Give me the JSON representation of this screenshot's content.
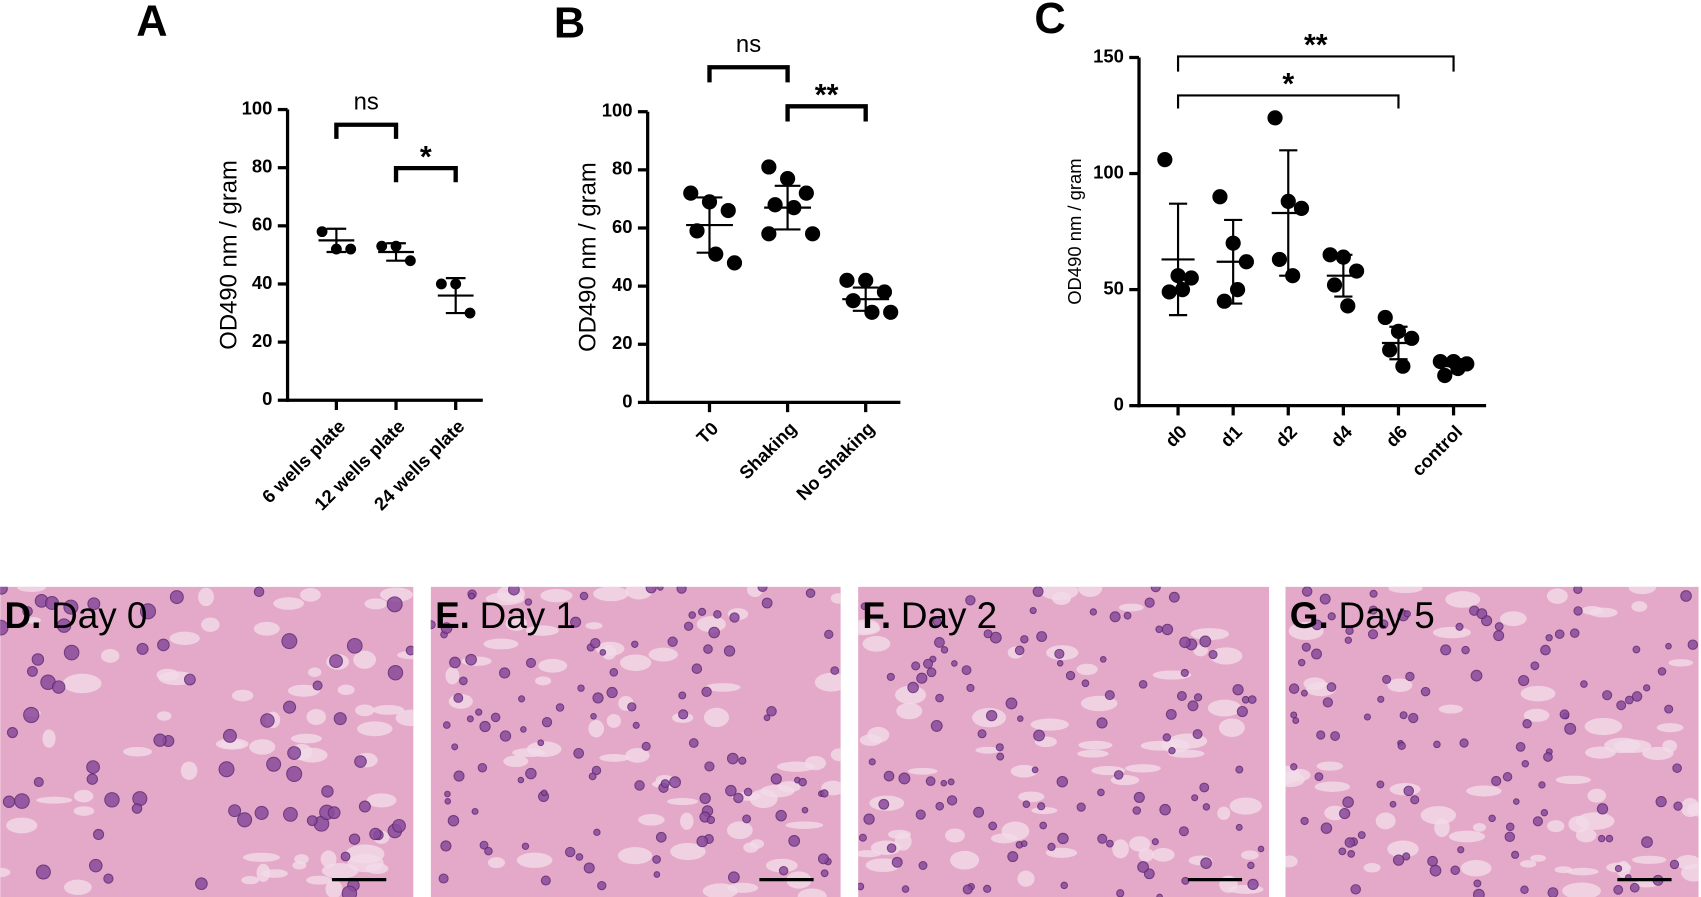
{
  "chart_data": [
    {
      "type": "dotplot",
      "panel_label": "A",
      "ylabel": "OD490 nm / gram",
      "categories": [
        "6 wells plate",
        "12 wells plate",
        "24 wells plate"
      ],
      "values": [
        [
          58,
          52,
          52
        ],
        [
          53,
          53,
          48
        ],
        [
          40,
          40,
          30
        ]
      ],
      "means": [
        55,
        51,
        36
      ],
      "sds": [
        4,
        3,
        6
      ],
      "ylim": [
        0,
        100
      ],
      "yticks": [
        0,
        20,
        40,
        60,
        80,
        100
      ],
      "annotations": [
        {
          "text": "ns",
          "from": 0,
          "to": 1
        },
        {
          "text": "*",
          "from": 1,
          "to": 2
        }
      ],
      "color": "#000000"
    },
    {
      "type": "dotplot",
      "panel_label": "B",
      "ylabel": "OD490 nm / gram",
      "categories": [
        "T0",
        "Shaking",
        "No Shaking"
      ],
      "values": [
        [
          72,
          69,
          66,
          59,
          51,
          48
        ],
        [
          81,
          77,
          72,
          68,
          67,
          58,
          58
        ],
        [
          42,
          42,
          38,
          35,
          31,
          31
        ]
      ],
      "means": [
        61,
        67,
        35.5
      ],
      "sds": [
        9.5,
        7.5,
        4
      ],
      "ylim": [
        0,
        100
      ],
      "yticks": [
        0,
        20,
        40,
        60,
        80,
        100
      ],
      "annotations": [
        {
          "text": "ns",
          "from": 0,
          "to": 1
        },
        {
          "text": "**",
          "from": 1,
          "to": 2
        }
      ],
      "color": "#000000"
    },
    {
      "type": "dotplot",
      "panel_label": "C",
      "ylabel": "OD490 nm / gram",
      "categories": [
        "d0",
        "d1",
        "d2",
        "d4",
        "d6",
        "control"
      ],
      "values": [
        [
          106,
          56,
          55,
          49,
          50
        ],
        [
          90,
          70,
          62,
          45,
          50
        ],
        [
          124,
          88,
          85,
          63,
          56
        ],
        [
          65,
          64,
          58,
          52,
          43
        ],
        [
          38,
          32,
          29,
          24,
          17
        ],
        [
          19,
          19,
          18,
          13,
          16
        ]
      ],
      "means": [
        63,
        62,
        83,
        56,
        27,
        17
      ],
      "sds": [
        24,
        18,
        27,
        9,
        7,
        3
      ],
      "ylim": [
        0,
        150
      ],
      "yticks": [
        0,
        50,
        100,
        150
      ],
      "annotations": [
        {
          "text": "**",
          "from": 0,
          "to": 5
        },
        {
          "text": "*",
          "from": 0,
          "to": 4
        }
      ],
      "color": "#000000"
    }
  ],
  "panels": [
    {
      "letter": "D.",
      "label": "Day 0"
    },
    {
      "letter": "E.",
      "label": "Day 1"
    },
    {
      "letter": "F.",
      "label": "Day 2"
    },
    {
      "letter": "G.",
      "label": "Day 5"
    }
  ]
}
